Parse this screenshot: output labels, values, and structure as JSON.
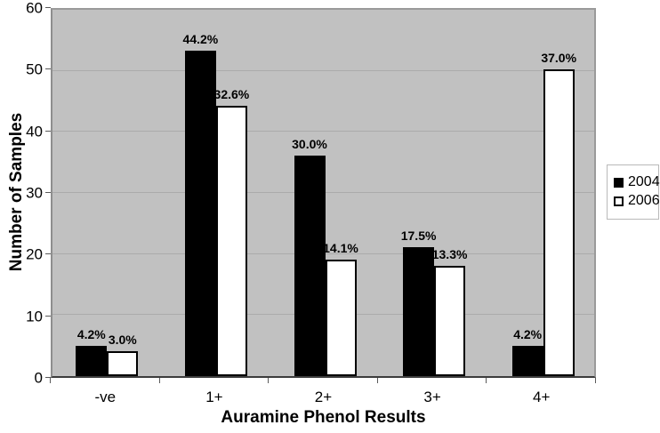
{
  "chart_data": {
    "type": "bar",
    "title": "",
    "categories": [
      "-ve",
      "1+",
      "2+",
      "3+",
      "4+"
    ],
    "series": [
      {
        "name": "2004",
        "color": "#000000",
        "values": [
          5,
          53,
          36,
          21,
          5
        ],
        "labels": [
          "4.2%",
          "44.2%",
          "30.0%",
          "17.5%",
          "4.2%"
        ]
      },
      {
        "name": "2006",
        "color": "#ffffff",
        "values": [
          4,
          44,
          19,
          18,
          50
        ],
        "labels": [
          "3.0%",
          "32.6%",
          "14.1%",
          "13.3%",
          "37.0%"
        ]
      }
    ],
    "xlabel": "Auramine Phenol Results",
    "ylabel": "Number of Samples",
    "ylim": [
      0,
      60
    ],
    "ytick_step": 10,
    "ytick_labels": [
      "0",
      "10",
      "20",
      "30",
      "40",
      "50",
      "60"
    ],
    "grid": true,
    "legend_position": "right",
    "legend_entries": [
      "2004",
      "2006"
    ]
  },
  "style_colors": {
    "plot_background": "#c1c1c1",
    "gridline": "#ababab",
    "bar_border": "#000000",
    "axis_tick": "#5a5a5a",
    "plot_border": "#9a9a9a",
    "legend_border": "#b9b9b9"
  }
}
